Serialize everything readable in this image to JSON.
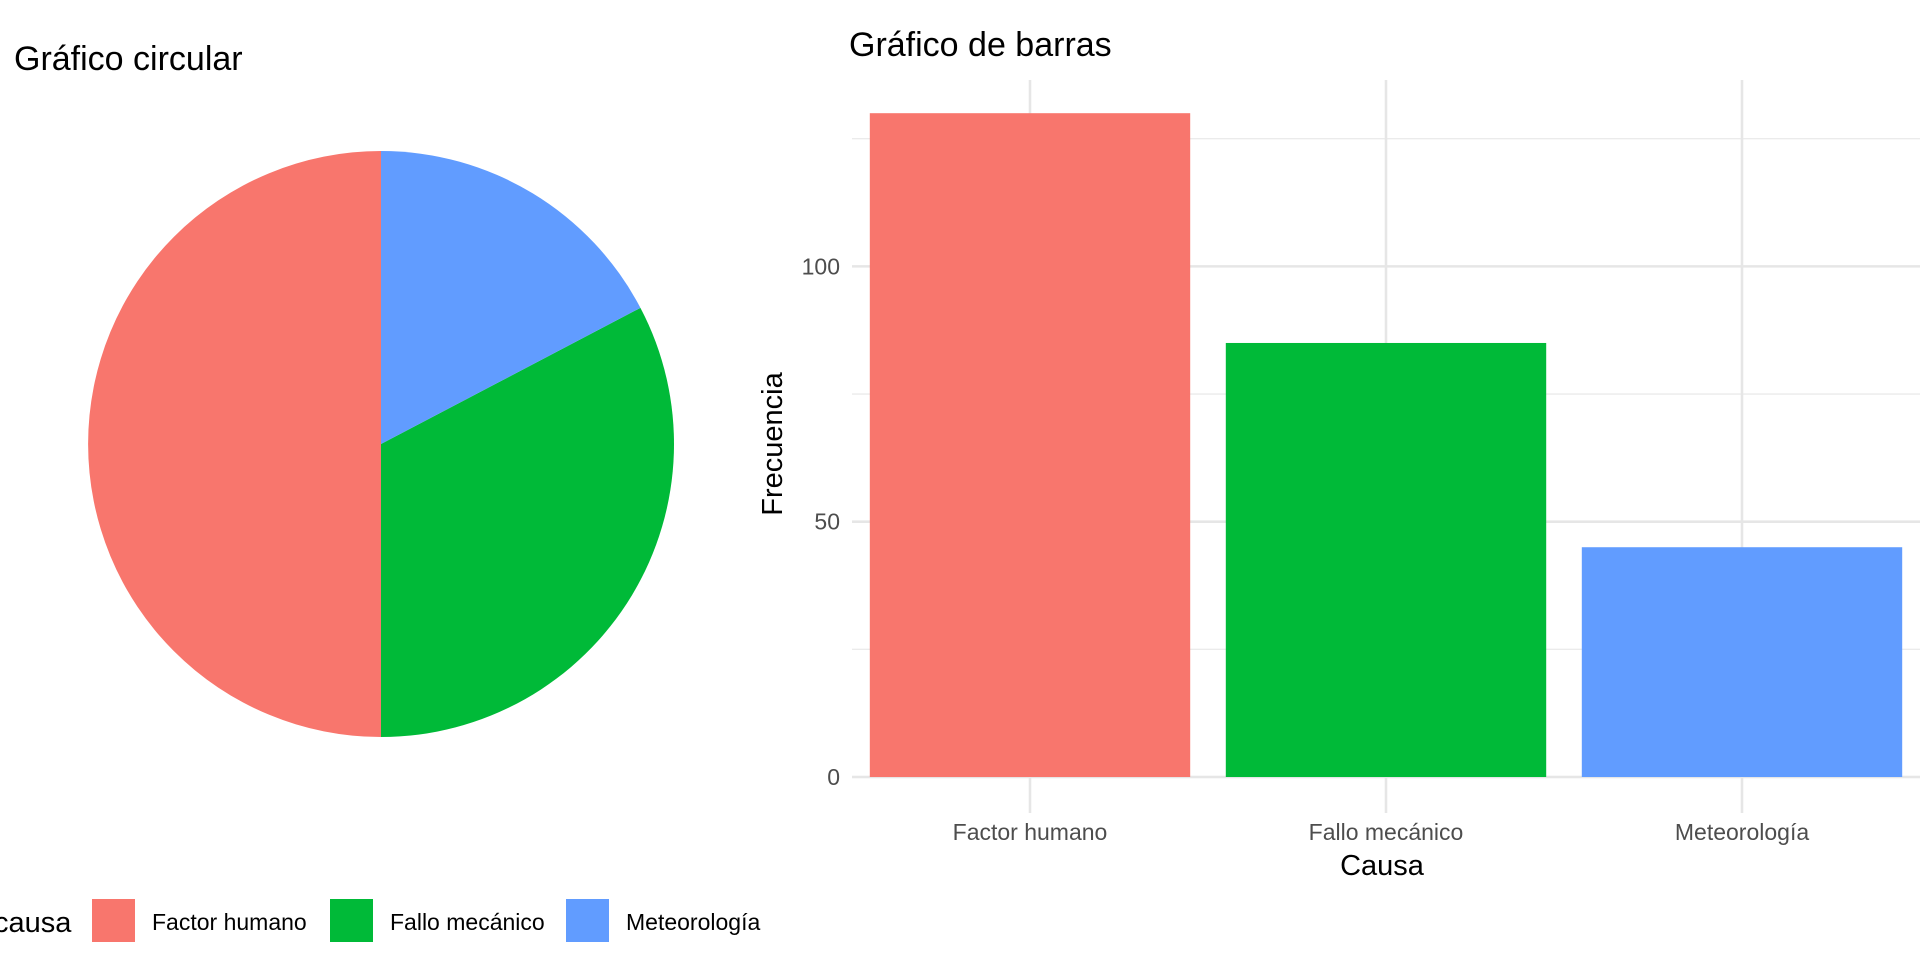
{
  "chart_data": [
    {
      "type": "pie",
      "title": "Gráfico circular",
      "categories": [
        "Factor humano",
        "Fallo mecánico",
        "Meteorología"
      ],
      "values": [
        130,
        85,
        45
      ],
      "colors": [
        "#F8766D",
        "#00BA38",
        "#619CFF"
      ],
      "start": "12 o'clock",
      "direction": "counter-clockwise",
      "legend": {
        "title": "causa",
        "placement": "bottom",
        "entries": [
          "Factor humano",
          "Fallo mecánico",
          "Meteorología"
        ]
      }
    },
    {
      "type": "bar",
      "title": "Gráfico de barras",
      "categories": [
        "Factor humano",
        "Fallo mecánico",
        "Meteorología"
      ],
      "values": [
        130,
        85,
        45
      ],
      "colors": [
        "#F8766D",
        "#00BA38",
        "#619CFF"
      ],
      "xlabel": "Causa",
      "ylabel": "Frecuencia",
      "ylim": [
        0,
        136.5
      ],
      "yticks": [
        0,
        50,
        100
      ],
      "ytick_labels": [
        "0",
        "50",
        "100"
      ],
      "grid": true
    }
  ]
}
